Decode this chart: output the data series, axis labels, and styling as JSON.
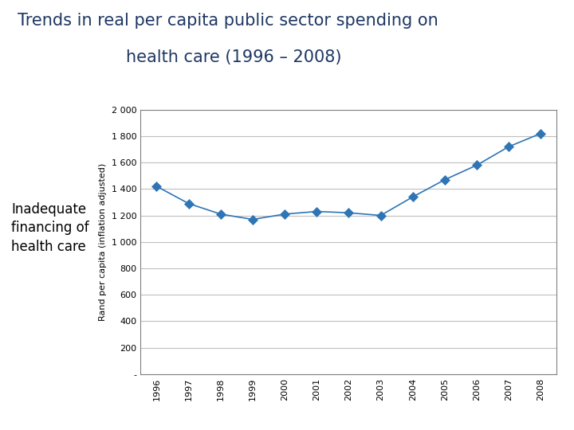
{
  "title_line1": "Trends in real per capita public sector spending on",
  "title_line2": "health care (1996 – 2008)",
  "side_text": "Inadequate\nfinancing of\nhealth care",
  "years": [
    1996,
    1997,
    1998,
    1999,
    2000,
    2001,
    2002,
    2003,
    2004,
    2005,
    2006,
    2007,
    2008
  ],
  "values": [
    1420,
    1290,
    1210,
    1170,
    1210,
    1230,
    1220,
    1200,
    1340,
    1470,
    1580,
    1720,
    1820
  ],
  "ylabel": "Rand per capita (inflation adjusted)",
  "ylim": [
    0,
    2000
  ],
  "yticks": [
    0,
    200,
    400,
    600,
    800,
    1000,
    1200,
    1400,
    1600,
    1800,
    2000
  ],
  "ytick_labels": [
    "-",
    "200",
    "400",
    "600",
    "800",
    "1 000",
    "1 200",
    "1 400",
    "1 600",
    "1 800",
    "2 000"
  ],
  "line_color": "#2e75b6",
  "marker_color": "#2e75b6",
  "title_color": "#1f3864",
  "background_color": "#ffffff",
  "plot_bg_color": "#ffffff",
  "grid_color": "#bfbfbf",
  "border_color": "#808080",
  "title_fontsize": 15,
  "axis_label_fontsize": 8,
  "tick_fontsize": 8,
  "side_text_fontsize": 12
}
